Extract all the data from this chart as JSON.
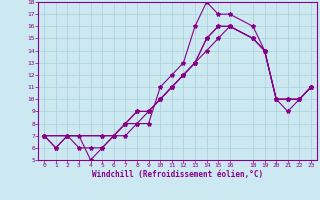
{
  "xlabel": "Windchill (Refroidissement éolien,°C)",
  "background_color": "#cce8f0",
  "grid_color": "#aacfdb",
  "line_color": "#880088",
  "spine_color": "#880088",
  "xlim": [
    -0.5,
    23.5
  ],
  "ylim": [
    5,
    18
  ],
  "xticks": [
    0,
    1,
    2,
    3,
    4,
    5,
    6,
    7,
    8,
    9,
    10,
    11,
    12,
    13,
    14,
    15,
    16,
    18,
    19,
    20,
    21,
    22,
    23
  ],
  "yticks": [
    5,
    6,
    7,
    8,
    9,
    10,
    11,
    12,
    13,
    14,
    15,
    16,
    17,
    18
  ],
  "line1_x": [
    0,
    1,
    2,
    3,
    4,
    5,
    6,
    7,
    8,
    9,
    10,
    11,
    12,
    13,
    14,
    15,
    16,
    18,
    19,
    20,
    21,
    22,
    23
  ],
  "line1_y": [
    7,
    6,
    7,
    7,
    5,
    6,
    7,
    7,
    8,
    8,
    11,
    12,
    13,
    16,
    18,
    17,
    17,
    16,
    14,
    10,
    9,
    10,
    11
  ],
  "line2_x": [
    0,
    1,
    2,
    3,
    4,
    5,
    6,
    7,
    8,
    9,
    10,
    11,
    12,
    13,
    14,
    15,
    16,
    18,
    19,
    20,
    21,
    22,
    23
  ],
  "line2_y": [
    7,
    6,
    7,
    6,
    6,
    6,
    7,
    8,
    9,
    9,
    10,
    11,
    12,
    13,
    15,
    16,
    16,
    15,
    14,
    10,
    10,
    10,
    11
  ],
  "line3_x": [
    0,
    2,
    5,
    6,
    7,
    8,
    9,
    10,
    11,
    12,
    13,
    14,
    15,
    16,
    18,
    19,
    20,
    21,
    22,
    23
  ],
  "line3_y": [
    7,
    7,
    7,
    7,
    8,
    9,
    9,
    10,
    11,
    12,
    13,
    15,
    16,
    16,
    15,
    14,
    10,
    10,
    10,
    11
  ],
  "line4_x": [
    0,
    5,
    6,
    7,
    8,
    9,
    10,
    11,
    12,
    13,
    14,
    15,
    16,
    18,
    19,
    20,
    21,
    22,
    23
  ],
  "line4_y": [
    7,
    7,
    7,
    8,
    8,
    9,
    10,
    11,
    12,
    13,
    14,
    15,
    16,
    15,
    14,
    10,
    10,
    10,
    11
  ]
}
